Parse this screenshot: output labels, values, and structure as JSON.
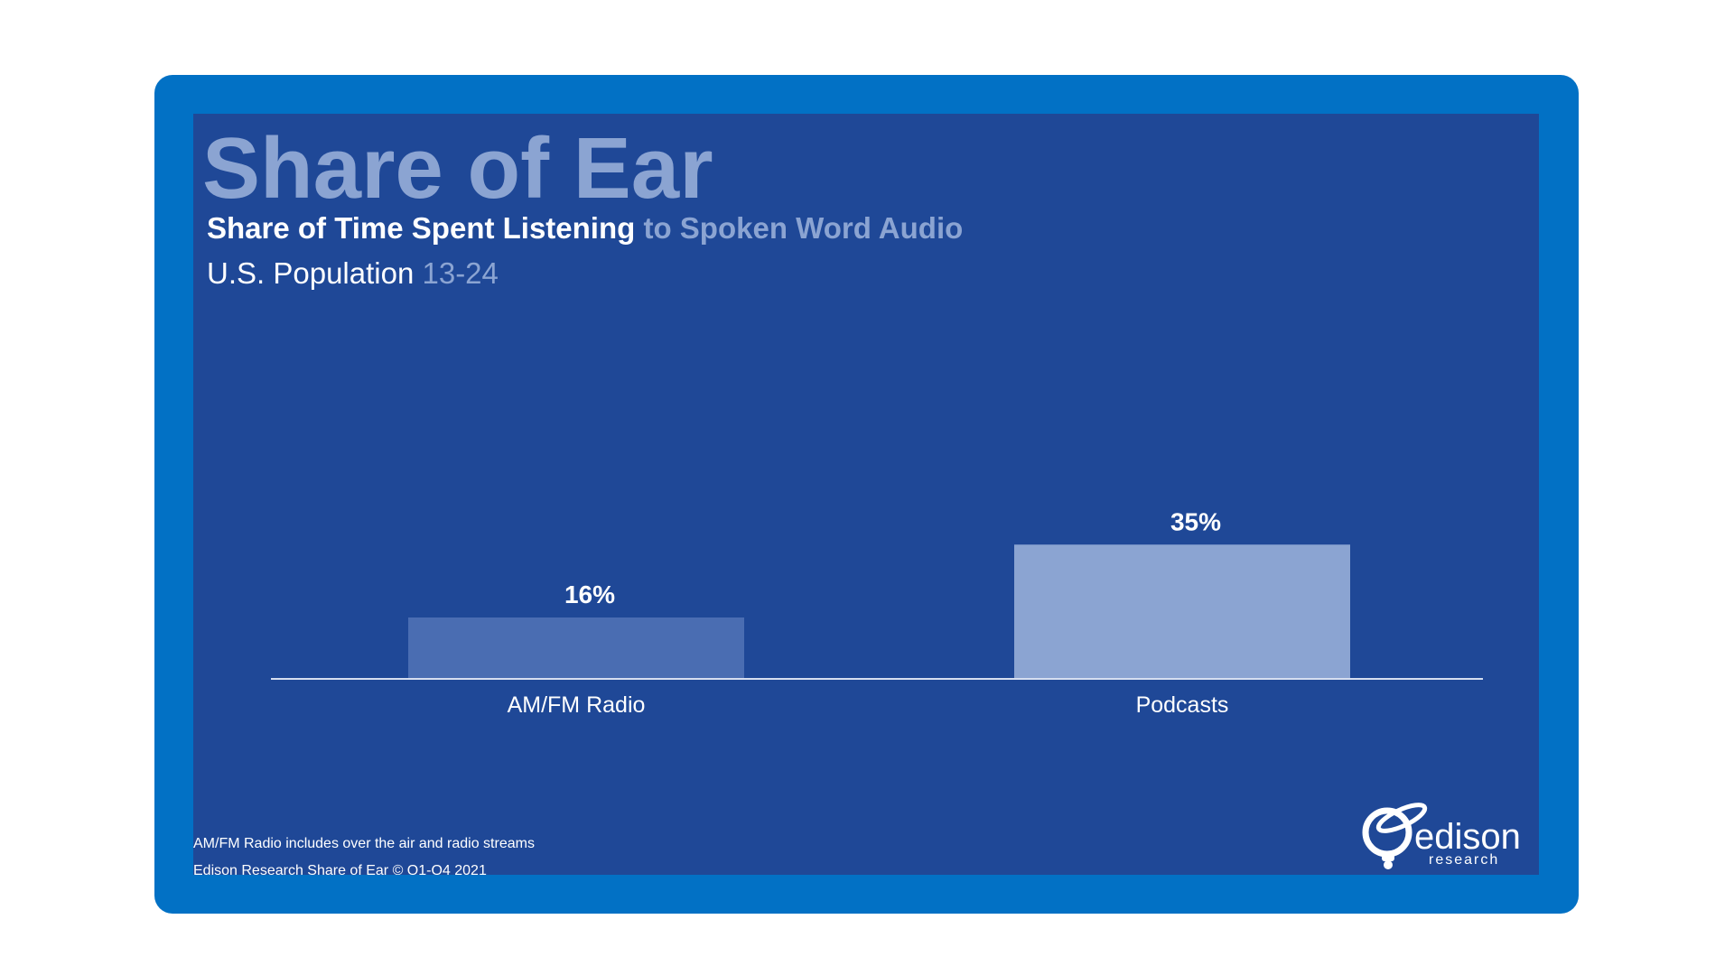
{
  "header": {
    "title": "Share of Ear",
    "subtitle_strong": "Share of Time Spent Listening",
    "subtitle_muted": "to Spoken Word Audio",
    "population_label": "U.S. Population",
    "population_range": "13-24"
  },
  "footer": {
    "note_1": "AM/FM Radio includes over the air and radio streams",
    "note_2": "Edison Research Share of Ear © Q1-Q4 2021"
  },
  "logo": {
    "text": "edison",
    "subtext": "research"
  },
  "colors": {
    "frame": "#0271c5",
    "slide": "#1f4897",
    "title": "#8ba4d2",
    "bar_radio": "#4a6db2",
    "bar_podcasts": "#8ba4d2",
    "axis": "#d6def0",
    "text": "#ffffff"
  },
  "chart_data": {
    "type": "bar",
    "title": "",
    "xlabel": "",
    "ylabel": "",
    "categories": [
      "AM/FM Radio",
      "Podcasts"
    ],
    "values": [
      16,
      35
    ],
    "value_labels": [
      "16%",
      "35%"
    ],
    "grid": false,
    "legend": "none",
    "ylim": [
      0,
      100
    ]
  }
}
